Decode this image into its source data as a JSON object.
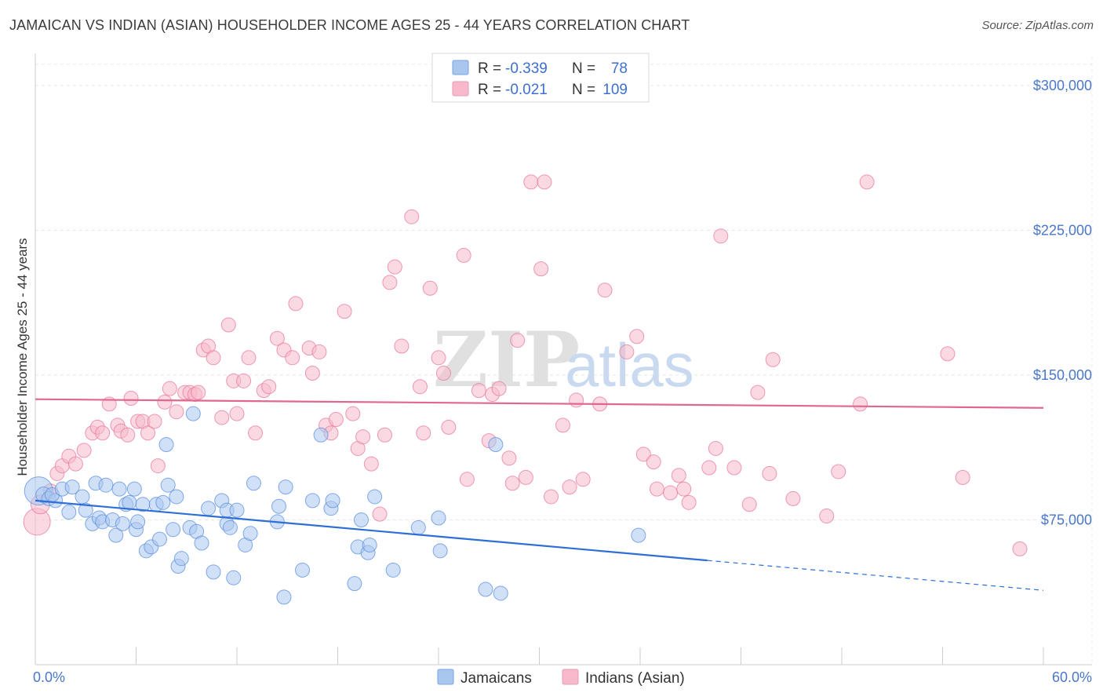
{
  "title": "JAMAICAN VS INDIAN (ASIAN) HOUSEHOLDER INCOME AGES 25 - 44 YEARS CORRELATION CHART",
  "source": "Source: ZipAtlas.com",
  "watermark": {
    "zip": "ZIP",
    "atlas": "atlas"
  },
  "legend_top": {
    "rows": [
      {
        "r_label": "R =",
        "r_value": "-0.339",
        "n_label": "N =",
        "n_value": "78",
        "color": "#a9c6ef"
      },
      {
        "r_label": "R =",
        "r_value": "-0.021",
        "n_label": "N =",
        "n_value": "109",
        "color": "#f7b9cb"
      }
    ]
  },
  "legend_bottom": [
    {
      "label": "Jamaicans",
      "color": "#a9c6ef"
    },
    {
      "label": "Indians (Asian)",
      "color": "#f7b9cb"
    }
  ],
  "chart_data": {
    "type": "scatter",
    "title": "JAMAICAN VS INDIAN (ASIAN) HOUSEHOLDER INCOME AGES 25 - 44 YEARS CORRELATION CHART",
    "xlabel": "",
    "ylabel": "Householder Income Ages 25 - 44 years",
    "xlim": [
      0,
      60
    ],
    "ylim": [
      0,
      315000
    ],
    "x_tick_labels": [
      "0.0%",
      "60.0%"
    ],
    "y_ticks": [
      75000,
      150000,
      225000,
      300000
    ],
    "y_tick_labels": [
      "$75,000",
      "$150,000",
      "$225,000",
      "$300,000"
    ],
    "grid": true,
    "legend_placement": "top-center",
    "series": [
      {
        "name": "Jamaicans",
        "color": "#5b8fe0",
        "fill": "#a9c6ef",
        "trend": {
          "x0": 0,
          "y0": 85000,
          "x1": 40,
          "y1": 54000,
          "dash_to_x": 60,
          "dash_to_y": 38500
        },
        "points": [
          [
            0.2,
            90000,
            18
          ],
          [
            0.5,
            88000,
            10
          ],
          [
            0.8,
            86000,
            9
          ],
          [
            1.2,
            85000,
            9
          ],
          [
            1.0,
            88000,
            9
          ],
          [
            1.6,
            91000,
            9
          ],
          [
            2.0,
            79000,
            9
          ],
          [
            2.2,
            92000,
            9
          ],
          [
            2.8,
            87000,
            9
          ],
          [
            3.0,
            80000,
            9
          ],
          [
            3.4,
            73000,
            9
          ],
          [
            3.6,
            94000,
            9
          ],
          [
            3.8,
            76000,
            9
          ],
          [
            4.0,
            74000,
            9
          ],
          [
            4.2,
            93000,
            9
          ],
          [
            4.6,
            75000,
            9
          ],
          [
            4.8,
            67000,
            9
          ],
          [
            5.0,
            91000,
            9
          ],
          [
            5.2,
            73000,
            9
          ],
          [
            5.4,
            83000,
            9
          ],
          [
            5.6,
            84000,
            9
          ],
          [
            5.9,
            91000,
            9
          ],
          [
            6.0,
            70000,
            9
          ],
          [
            6.1,
            74000,
            9
          ],
          [
            6.4,
            83000,
            9
          ],
          [
            6.6,
            59000,
            9
          ],
          [
            6.9,
            61000,
            9
          ],
          [
            7.2,
            83000,
            9
          ],
          [
            7.4,
            65000,
            9
          ],
          [
            7.6,
            84000,
            9
          ],
          [
            7.8,
            114000,
            9
          ],
          [
            7.9,
            93000,
            9
          ],
          [
            8.2,
            70000,
            9
          ],
          [
            8.4,
            87000,
            9
          ],
          [
            8.5,
            51000,
            9
          ],
          [
            8.7,
            55000,
            9
          ],
          [
            9.2,
            71000,
            9
          ],
          [
            9.4,
            130000,
            9
          ],
          [
            9.6,
            69000,
            9
          ],
          [
            9.9,
            63000,
            9
          ],
          [
            10.3,
            81000,
            9
          ],
          [
            10.6,
            48000,
            9
          ],
          [
            11.1,
            85000,
            9
          ],
          [
            11.4,
            73000,
            9
          ],
          [
            11.4,
            80000,
            9
          ],
          [
            11.6,
            71000,
            9
          ],
          [
            11.8,
            45000,
            9
          ],
          [
            12.0,
            80000,
            9
          ],
          [
            12.5,
            62000,
            9
          ],
          [
            12.8,
            68000,
            9
          ],
          [
            13.0,
            94000,
            9
          ],
          [
            14.4,
            74000,
            9
          ],
          [
            14.5,
            82000,
            9
          ],
          [
            14.8,
            35000,
            9
          ],
          [
            14.9,
            92000,
            9
          ],
          [
            15.9,
            49000,
            9
          ],
          [
            16.5,
            85000,
            9
          ],
          [
            17.0,
            119000,
            9
          ],
          [
            17.6,
            81000,
            9
          ],
          [
            17.7,
            85000,
            9
          ],
          [
            19.0,
            42000,
            9
          ],
          [
            19.2,
            61000,
            9
          ],
          [
            19.4,
            75000,
            9
          ],
          [
            19.8,
            58000,
            9
          ],
          [
            19.9,
            62000,
            9
          ],
          [
            20.2,
            87000,
            9
          ],
          [
            21.3,
            49000,
            9
          ],
          [
            22.8,
            71000,
            9
          ],
          [
            24.1,
            59000,
            9
          ],
          [
            24.0,
            76000,
            9
          ],
          [
            26.8,
            39000,
            9
          ],
          [
            27.4,
            114000,
            9
          ],
          [
            27.7,
            37000,
            9
          ],
          [
            35.9,
            67000,
            9
          ]
        ]
      },
      {
        "name": "Indians (Asian)",
        "color": "#e8789d",
        "fill": "#f7b9cb",
        "trend": {
          "x0": 0,
          "y0": 137500,
          "x1": 60,
          "y1": 133000
        },
        "points": [
          [
            0.1,
            74000,
            17
          ],
          [
            0.3,
            83000,
            12
          ],
          [
            0.9,
            90000,
            9
          ],
          [
            1.3,
            99000,
            9
          ],
          [
            1.6,
            103000,
            9
          ],
          [
            2.0,
            108000,
            9
          ],
          [
            2.4,
            104000,
            9
          ],
          [
            2.9,
            111000,
            9
          ],
          [
            3.4,
            120000,
            9
          ],
          [
            3.7,
            123000,
            9
          ],
          [
            4.0,
            120000,
            9
          ],
          [
            4.4,
            135000,
            9
          ],
          [
            4.9,
            124000,
            9
          ],
          [
            5.1,
            121000,
            9
          ],
          [
            5.5,
            119000,
            9
          ],
          [
            5.7,
            138000,
            9
          ],
          [
            6.1,
            126000,
            9
          ],
          [
            6.4,
            126000,
            9
          ],
          [
            6.7,
            120000,
            9
          ],
          [
            7.1,
            126000,
            9
          ],
          [
            7.3,
            103000,
            9
          ],
          [
            7.7,
            136000,
            9
          ],
          [
            8.0,
            143000,
            9
          ],
          [
            8.4,
            131000,
            9
          ],
          [
            8.9,
            141000,
            9
          ],
          [
            9.2,
            141000,
            9
          ],
          [
            9.5,
            140000,
            9
          ],
          [
            9.7,
            141000,
            9
          ],
          [
            10.0,
            163000,
            9
          ],
          [
            10.3,
            165000,
            9
          ],
          [
            10.6,
            159000,
            9
          ],
          [
            11.1,
            128000,
            9
          ],
          [
            11.5,
            176000,
            9
          ],
          [
            11.8,
            147000,
            9
          ],
          [
            12.0,
            130000,
            9
          ],
          [
            12.4,
            147000,
            9
          ],
          [
            12.7,
            159000,
            9
          ],
          [
            13.1,
            120000,
            9
          ],
          [
            13.6,
            142000,
            9
          ],
          [
            13.9,
            144000,
            9
          ],
          [
            14.4,
            169000,
            9
          ],
          [
            14.8,
            163000,
            9
          ],
          [
            15.3,
            159000,
            9
          ],
          [
            15.5,
            187000,
            9
          ],
          [
            16.3,
            164000,
            9
          ],
          [
            16.5,
            151000,
            9
          ],
          [
            16.9,
            162000,
            9
          ],
          [
            17.3,
            124000,
            9
          ],
          [
            17.6,
            120000,
            9
          ],
          [
            17.9,
            127000,
            9
          ],
          [
            18.4,
            183000,
            9
          ],
          [
            18.9,
            130000,
            9
          ],
          [
            19.2,
            112000,
            9
          ],
          [
            19.5,
            118000,
            9
          ],
          [
            20.0,
            104000,
            9
          ],
          [
            20.5,
            78000,
            9
          ],
          [
            20.8,
            119000,
            9
          ],
          [
            21.1,
            198000,
            9
          ],
          [
            21.4,
            206000,
            9
          ],
          [
            21.8,
            165000,
            9
          ],
          [
            22.4,
            232000,
            9
          ],
          [
            22.9,
            144000,
            9
          ],
          [
            23.1,
            120000,
            9
          ],
          [
            23.5,
            195000,
            9
          ],
          [
            24.0,
            159000,
            9
          ],
          [
            24.3,
            151000,
            9
          ],
          [
            24.6,
            123000,
            9
          ],
          [
            25.5,
            212000,
            9
          ],
          [
            25.7,
            96000,
            9
          ],
          [
            26.4,
            142000,
            9
          ],
          [
            27.0,
            116000,
            9
          ],
          [
            27.2,
            140000,
            9
          ],
          [
            27.6,
            143000,
            9
          ],
          [
            28.2,
            107000,
            9
          ],
          [
            28.4,
            94000,
            9
          ],
          [
            28.7,
            168000,
            9
          ],
          [
            29.2,
            97000,
            9
          ],
          [
            29.5,
            250000,
            9
          ],
          [
            30.1,
            205000,
            9
          ],
          [
            30.3,
            250000,
            9
          ],
          [
            30.7,
            87000,
            9
          ],
          [
            31.4,
            124000,
            9
          ],
          [
            31.8,
            92000,
            9
          ],
          [
            32.2,
            137000,
            9
          ],
          [
            32.6,
            96000,
            9
          ],
          [
            33.6,
            135000,
            9
          ],
          [
            33.9,
            194000,
            9
          ],
          [
            35.2,
            162000,
            9
          ],
          [
            35.8,
            170000,
            9
          ],
          [
            36.2,
            109000,
            9
          ],
          [
            36.8,
            105000,
            9
          ],
          [
            37.0,
            91000,
            9
          ],
          [
            37.8,
            89000,
            9
          ],
          [
            38.3,
            98000,
            9
          ],
          [
            38.6,
            91000,
            9
          ],
          [
            38.9,
            84000,
            9
          ],
          [
            40.1,
            102000,
            9
          ],
          [
            40.5,
            112000,
            9
          ],
          [
            40.8,
            222000,
            9
          ],
          [
            41.6,
            102000,
            9
          ],
          [
            42.5,
            83000,
            9
          ],
          [
            43.0,
            141000,
            9
          ],
          [
            43.7,
            99000,
            9
          ],
          [
            43.9,
            158000,
            9
          ],
          [
            45.1,
            86000,
            9
          ],
          [
            47.1,
            77000,
            9
          ],
          [
            47.8,
            100000,
            9
          ],
          [
            49.1,
            135000,
            9
          ],
          [
            49.5,
            250000,
            9
          ],
          [
            54.3,
            161000,
            9
          ],
          [
            55.2,
            97000,
            9
          ],
          [
            58.6,
            60000,
            9
          ]
        ]
      }
    ]
  }
}
